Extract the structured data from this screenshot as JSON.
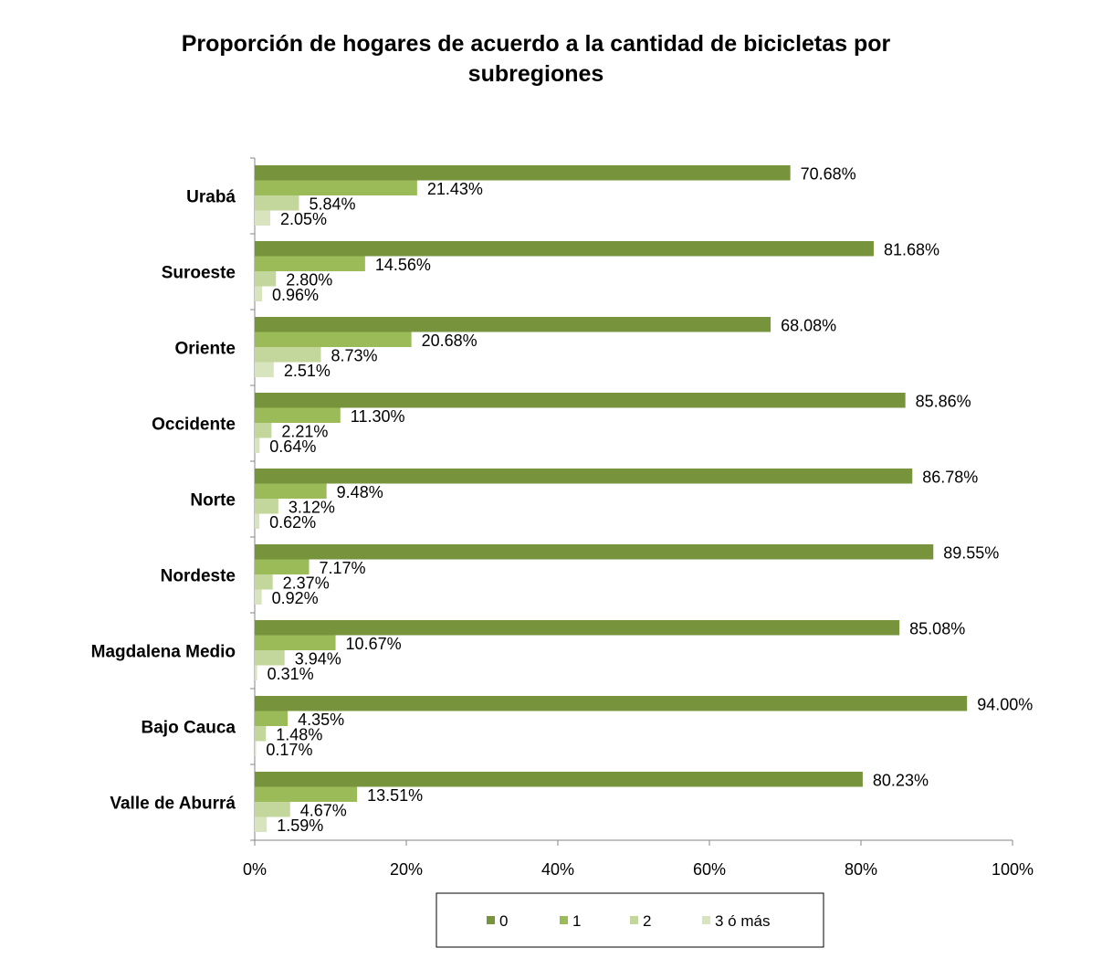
{
  "chart_data": {
    "type": "bar",
    "orientation": "horizontal",
    "title": "Proporción de hogares de acuerdo a la cantidad de bicicletas por subregiones",
    "title_lines": [
      "Proporción de hogares de acuerdo a la cantidad de bicicletas por",
      "subregiones"
    ],
    "categories": [
      "Urabá",
      "Suroeste",
      "Oriente",
      "Occidente",
      "Norte",
      "Nordeste",
      "Magdalena Medio",
      "Bajo Cauca",
      "Valle de Aburrá"
    ],
    "series": [
      {
        "name": "0",
        "color": "#77933c",
        "values": [
          70.68,
          81.68,
          68.08,
          85.86,
          86.78,
          89.55,
          85.08,
          94.0,
          80.23
        ],
        "labels": [
          "70.68%",
          "81.68%",
          "68.08%",
          "85.86%",
          "86.78%",
          "89.55%",
          "85.08%",
          "94.00%",
          "80.23%"
        ]
      },
      {
        "name": "1",
        "color": "#9bbb59",
        "values": [
          21.43,
          14.56,
          20.68,
          11.3,
          9.48,
          7.17,
          10.67,
          4.35,
          13.51
        ],
        "labels": [
          "21.43%",
          "14.56%",
          "20.68%",
          "11.30%",
          "9.48%",
          "7.17%",
          "10.67%",
          "4.35%",
          "13.51%"
        ]
      },
      {
        "name": "2",
        "color": "#c3d69b",
        "values": [
          5.84,
          2.8,
          8.73,
          2.21,
          3.12,
          2.37,
          3.94,
          1.48,
          4.67
        ],
        "labels": [
          "5.84%",
          "2.80%",
          "8.73%",
          "2.21%",
          "3.12%",
          "2.37%",
          "3.94%",
          "1.48%",
          "4.67%"
        ]
      },
      {
        "name": "3 ó más",
        "color": "#d7e4bd",
        "values": [
          2.05,
          0.96,
          2.51,
          0.64,
          0.62,
          0.92,
          0.31,
          0.17,
          1.59
        ],
        "labels": [
          "2.05%",
          "0.96%",
          "2.51%",
          "0.64%",
          "0.62%",
          "0.92%",
          "0.31%",
          "0.17%",
          "1.59%"
        ]
      }
    ],
    "xlim": [
      0,
      100
    ],
    "x_ticks": [
      0,
      20,
      40,
      60,
      80,
      100
    ],
    "x_tick_labels": [
      "0%",
      "20%",
      "40%",
      "60%",
      "80%",
      "100%"
    ],
    "xlabel": "",
    "ylabel": "",
    "grid": false,
    "legend_position": "bottom"
  }
}
